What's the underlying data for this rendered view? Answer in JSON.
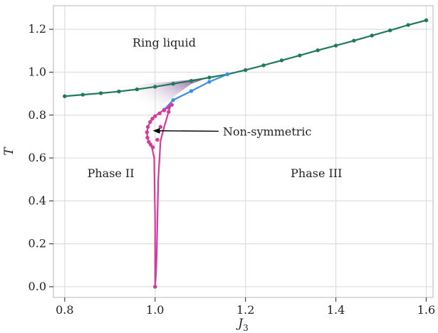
{
  "chart_data": {
    "type": "line",
    "xlabel": "J",
    "xlabel_sub": "3",
    "ylabel": "T",
    "xlim": [
      0.775,
      1.615
    ],
    "ylim": [
      -0.05,
      1.31
    ],
    "grid": true,
    "x_ticks": [
      0.8,
      1.0,
      1.2,
      1.4,
      1.6
    ],
    "x_tick_labels": [
      "0.8",
      "1.0",
      "1.2",
      "1.4",
      "1.6"
    ],
    "y_ticks": [
      0.0,
      0.2,
      0.4,
      0.6,
      0.8,
      1.0,
      1.2
    ],
    "y_tick_labels": [
      "0.0",
      "0.2",
      "0.4",
      "0.6",
      "0.8",
      "1.0",
      "1.2"
    ],
    "region_labels": [
      {
        "text": "Ring liquid",
        "x": 0.95,
        "y": 1.12
      },
      {
        "text": "Phase II",
        "x": 0.85,
        "y": 0.51
      },
      {
        "text": "Phase III",
        "x": 1.3,
        "y": 0.51
      }
    ],
    "annotation": {
      "text": "Non-symmetric",
      "text_x": 1.15,
      "text_y": 0.705,
      "arrow_to_x": 0.995,
      "arrow_to_y": 0.727
    },
    "shaded_region": {
      "color": "#7b3f8c",
      "boundary_x": [
        0.93,
        0.98,
        1.03,
        1.08,
        1.12,
        1.08,
        1.05,
        1.02,
        0.99,
        0.96,
        0.94
      ],
      "boundary_y": [
        0.93,
        0.945,
        0.955,
        0.965,
        0.977,
        0.945,
        0.9,
        0.85,
        0.8,
        0.8,
        0.85
      ]
    },
    "series": [
      {
        "color": "#1f7a5a",
        "x": [
          0.8,
          0.84,
          0.88,
          0.92,
          0.96,
          1.0,
          1.04,
          1.08,
          1.12,
          1.16,
          1.2,
          1.24,
          1.28,
          1.32,
          1.36,
          1.4,
          1.44,
          1.48,
          1.52,
          1.56,
          1.6
        ],
        "y": [
          0.888,
          0.895,
          0.902,
          0.91,
          0.92,
          0.932,
          0.946,
          0.96,
          0.975,
          0.99,
          1.01,
          1.032,
          1.055,
          1.078,
          1.102,
          1.124,
          1.147,
          1.171,
          1.195,
          1.22,
          1.242
        ]
      },
      {
        "color": "#3d8ee0",
        "x": [
          1.02,
          1.04,
          1.08,
          1.12,
          1.16
        ],
        "y": [
          0.825,
          0.87,
          0.912,
          0.955,
          0.99
        ]
      },
      {
        "color": "#d63a9a",
        "x": [
          1.0,
          1.0,
          0.998,
          0.993,
          0.988,
          0.984,
          0.982,
          0.984,
          0.99,
          0.998,
          1.008,
          1.018,
          1.028,
          1.035,
          1.03,
          1.02,
          1.012,
          1.007,
          1.005,
          1.004,
          1.003,
          1.002,
          1.001,
          1.0,
          1.0
        ],
        "y": [
          0.0,
          0.3,
          0.6,
          0.648,
          0.665,
          0.688,
          0.715,
          0.745,
          0.773,
          0.793,
          0.808,
          0.822,
          0.835,
          0.85,
          0.816,
          0.745,
          0.68,
          0.5,
          0.3,
          0.2,
          0.12,
          0.06,
          0.03,
          0.01,
          0.0
        ],
        "markers": [
          [
            1.0,
            0.0
          ],
          [
            0.995,
            0.65
          ],
          [
            0.99,
            0.663
          ],
          [
            0.986,
            0.675
          ],
          [
            0.983,
            0.695
          ],
          [
            0.982,
            0.72
          ],
          [
            0.984,
            0.745
          ],
          [
            0.989,
            0.768
          ],
          [
            0.994,
            0.783
          ],
          [
            1.0,
            0.795
          ],
          [
            1.01,
            0.808
          ],
          [
            1.02,
            0.822
          ],
          [
            1.03,
            0.835
          ],
          [
            1.037,
            0.848
          ],
          [
            1.03,
            0.815
          ],
          [
            1.012,
            0.745
          ],
          [
            1.005,
            0.685
          ],
          [
            1.0,
            0.0
          ]
        ]
      }
    ]
  }
}
